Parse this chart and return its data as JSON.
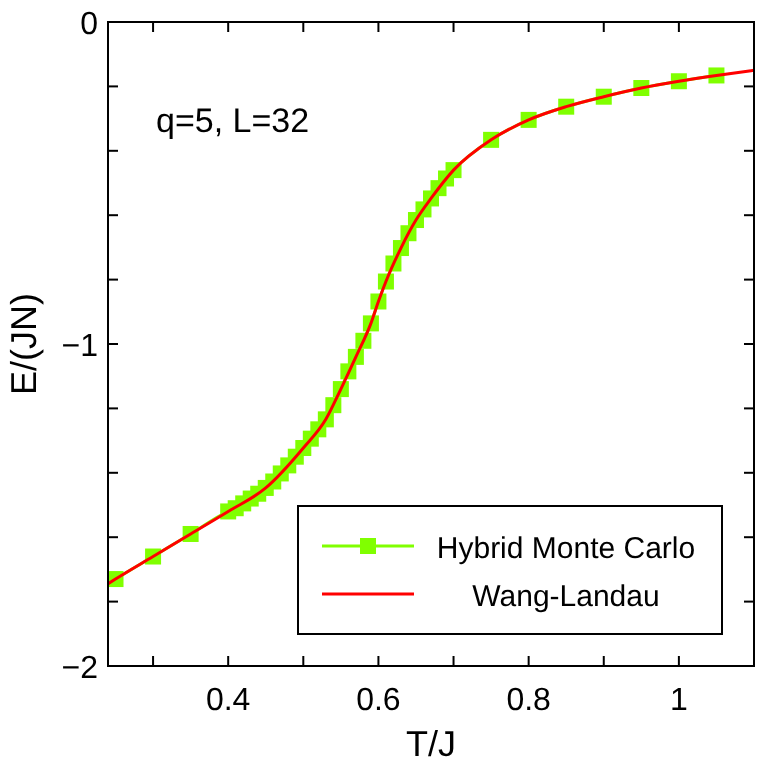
{
  "chart_data": {
    "type": "line",
    "xlabel": "T/J",
    "ylabel": "E/(JN)",
    "annotations": [
      "q=5, L=32"
    ],
    "xlim": [
      0.24,
      1.1
    ],
    "ylim": [
      -2,
      0
    ],
    "xticks": [
      {
        "value": 0.3,
        "label": null
      },
      0.4,
      {
        "value": 0.5,
        "label": null
      },
      0.6,
      {
        "value": 0.7,
        "label": null
      },
      0.8,
      {
        "value": 0.9,
        "label": null
      },
      1
    ],
    "yticks": [
      -2,
      {
        "value": -1.8,
        "label": null
      },
      {
        "value": -1.6,
        "label": null
      },
      {
        "value": -1.4,
        "label": null
      },
      {
        "value": -1.2,
        "label": null
      },
      -1,
      {
        "value": -0.8,
        "label": null
      },
      {
        "value": -0.6,
        "label": null
      },
      {
        "value": -0.4,
        "label": null
      },
      {
        "value": -0.2,
        "label": null
      },
      0
    ],
    "grid": false,
    "legend": "bottom right",
    "series": [
      {
        "name": "Hybrid Monte Carlo",
        "color": "#80ff00",
        "marker": "square",
        "x": [
          0.25,
          0.3,
          0.35,
          0.4,
          0.41,
          0.42,
          0.43,
          0.44,
          0.45,
          0.46,
          0.47,
          0.48,
          0.49,
          0.5,
          0.51,
          0.52,
          0.53,
          0.54,
          0.55,
          0.56,
          0.57,
          0.58,
          0.59,
          0.6,
          0.61,
          0.62,
          0.63,
          0.64,
          0.65,
          0.66,
          0.67,
          0.68,
          0.69,
          0.7,
          0.75,
          0.8,
          0.85,
          0.9,
          0.95,
          1.0,
          1.05
        ],
        "values": [
          -1.73,
          -1.66,
          -1.59,
          -1.52,
          -1.51,
          -1.495,
          -1.48,
          -1.465,
          -1.447,
          -1.427,
          -1.402,
          -1.377,
          -1.35,
          -1.323,
          -1.294,
          -1.265,
          -1.234,
          -1.19,
          -1.14,
          -1.085,
          -1.04,
          -0.99,
          -0.936,
          -0.868,
          -0.806,
          -0.75,
          -0.702,
          -0.656,
          -0.615,
          -0.582,
          -0.548,
          -0.516,
          -0.486,
          -0.46,
          -0.366,
          -0.304,
          -0.263,
          -0.232,
          -0.205,
          -0.184,
          -0.166
        ]
      },
      {
        "name": "Wang-Landau",
        "color": "#ff0000",
        "marker": "none",
        "x": [
          0.24,
          0.25,
          0.3,
          0.35,
          0.4,
          0.45,
          0.5,
          0.53,
          0.55,
          0.57,
          0.59,
          0.6,
          0.61,
          0.63,
          0.65,
          0.67,
          0.7,
          0.75,
          0.8,
          0.85,
          0.9,
          0.95,
          1.0,
          1.05,
          1.1
        ],
        "values": [
          -1.745,
          -1.73,
          -1.66,
          -1.59,
          -1.52,
          -1.447,
          -1.323,
          -1.234,
          -1.14,
          -1.04,
          -0.936,
          -0.868,
          -0.806,
          -0.702,
          -0.615,
          -0.548,
          -0.46,
          -0.366,
          -0.304,
          -0.263,
          -0.232,
          -0.205,
          -0.184,
          -0.166,
          -0.15
        ]
      }
    ]
  }
}
